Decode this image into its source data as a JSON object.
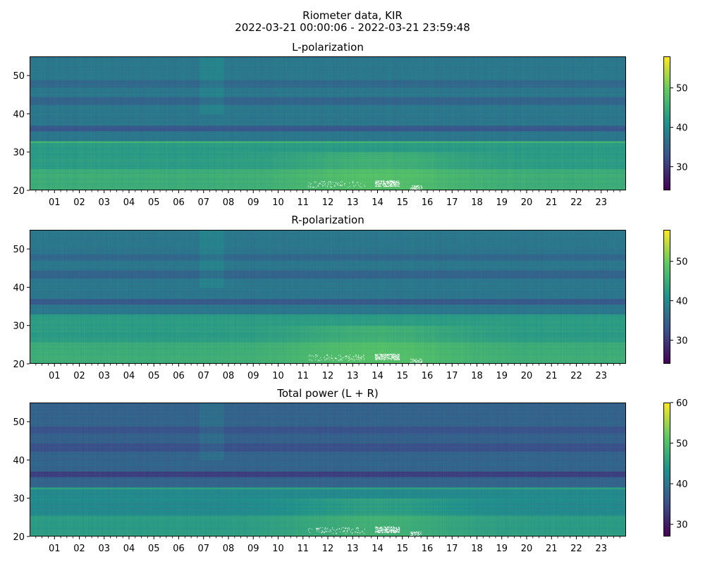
{
  "figure": {
    "title_line1": "Riometer data, KIR",
    "title_line2": "2022-03-21 00:00:06 - 2022-03-21 23:59:48"
  },
  "colormap": [
    "#440154",
    "#3b528b",
    "#21918c",
    "#5ec962",
    "#fde725"
  ],
  "chart_data": [
    {
      "type": "heatmap",
      "title": "L-polarization",
      "x_tick_labels": [
        "01",
        "02",
        "03",
        "04",
        "05",
        "06",
        "07",
        "08",
        "09",
        "10",
        "11",
        "12",
        "13",
        "14",
        "15",
        "16",
        "17",
        "18",
        "19",
        "20",
        "21",
        "22",
        "23"
      ],
      "x_range_hours": [
        0,
        24
      ],
      "y_range": [
        20,
        55
      ],
      "y_ticks": [
        20,
        30,
        40,
        50
      ],
      "colorbar_range": [
        24,
        58
      ],
      "colorbar_ticks": [
        30,
        40,
        50
      ]
    },
    {
      "type": "heatmap",
      "title": "R-polarization",
      "x_tick_labels": [
        "01",
        "02",
        "03",
        "04",
        "05",
        "06",
        "07",
        "08",
        "09",
        "10",
        "11",
        "12",
        "13",
        "14",
        "15",
        "16",
        "17",
        "18",
        "19",
        "20",
        "21",
        "22",
        "23"
      ],
      "x_range_hours": [
        0,
        24
      ],
      "y_range": [
        20,
        55
      ],
      "y_ticks": [
        20,
        30,
        40,
        50
      ],
      "colorbar_range": [
        24,
        58
      ],
      "colorbar_ticks": [
        30,
        40,
        50
      ]
    },
    {
      "type": "heatmap",
      "title": "Total power (L + R)",
      "x_tick_labels": [
        "01",
        "02",
        "03",
        "04",
        "05",
        "06",
        "07",
        "08",
        "09",
        "10",
        "11",
        "12",
        "13",
        "14",
        "15",
        "16",
        "17",
        "18",
        "19",
        "20",
        "21",
        "22",
        "23"
      ],
      "x_range_hours": [
        0,
        24
      ],
      "y_range": [
        20,
        55
      ],
      "y_ticks": [
        20,
        30,
        40,
        50
      ],
      "colorbar_range": [
        27,
        60
      ],
      "colorbar_ticks": [
        30,
        40,
        50,
        60
      ]
    }
  ]
}
